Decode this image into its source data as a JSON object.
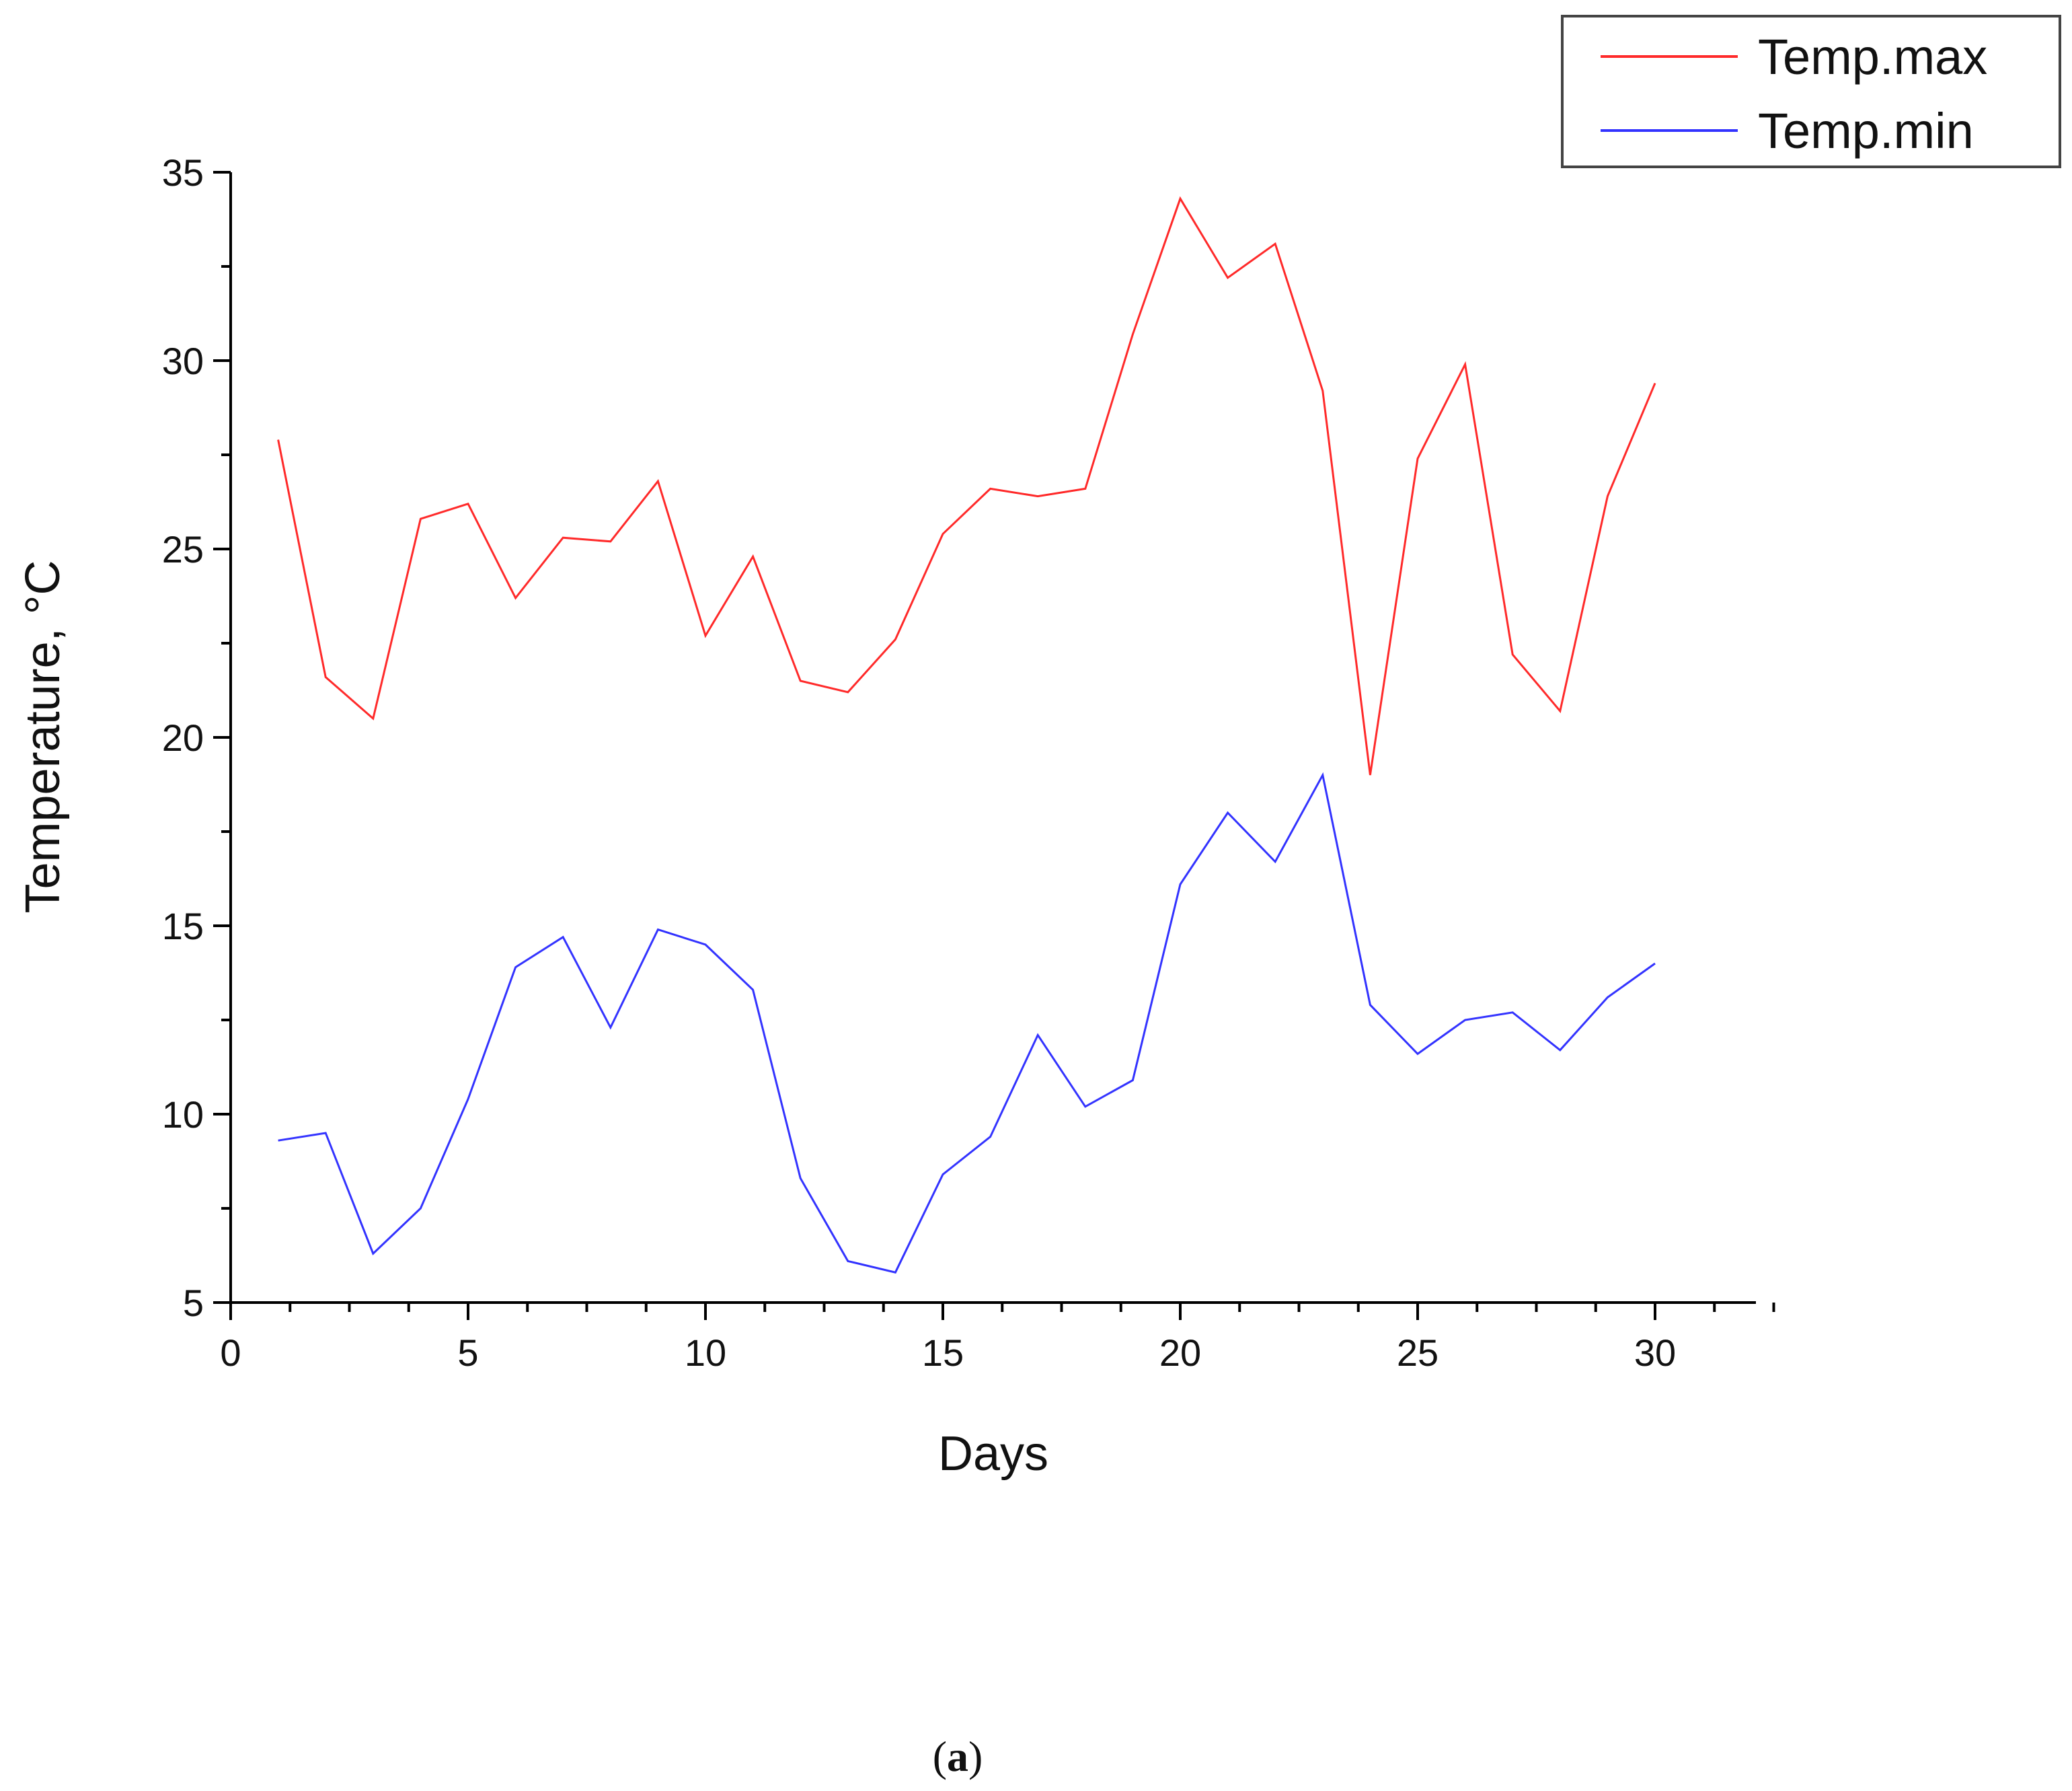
{
  "chart_data": {
    "type": "line",
    "title": "",
    "xlabel": "Days",
    "ylabel": "Temperature, °C",
    "xlim": [
      0,
      32.5
    ],
    "ylim": [
      5,
      35
    ],
    "x_ticks": [
      0,
      5,
      10,
      15,
      20,
      25,
      30
    ],
    "y_ticks": [
      5,
      10,
      15,
      20,
      25,
      30,
      35
    ],
    "legend_position": "top-right",
    "grid": false,
    "x": [
      1,
      2,
      3,
      4,
      5,
      6,
      7,
      8,
      9,
      10,
      11,
      12,
      13,
      14,
      15,
      16,
      17,
      18,
      19,
      20,
      21,
      22,
      23,
      24,
      25,
      26,
      27,
      28,
      29,
      30
    ],
    "series": [
      {
        "name": "Temp.max",
        "color": "#ff2a2a",
        "values": [
          27.9,
          21.6,
          20.5,
          25.8,
          26.2,
          23.7,
          25.3,
          25.2,
          26.8,
          22.7,
          24.8,
          21.5,
          21.2,
          22.6,
          25.4,
          26.6,
          26.4,
          26.6,
          30.7,
          34.3,
          32.2,
          33.1,
          29.2,
          19.0,
          27.4,
          29.9,
          22.2,
          20.7,
          26.4,
          29.4
        ]
      },
      {
        "name": "Temp.min",
        "color": "#3333ff",
        "values": [
          9.3,
          9.5,
          6.3,
          7.5,
          10.4,
          13.9,
          14.7,
          12.3,
          14.9,
          14.5,
          13.3,
          8.3,
          6.1,
          5.8,
          8.4,
          9.4,
          12.1,
          10.2,
          10.9,
          16.1,
          18.0,
          16.7,
          19.0,
          12.9,
          11.6,
          12.5,
          12.7,
          11.7,
          13.1,
          14.0
        ]
      }
    ]
  },
  "caption": {
    "open": "(",
    "letter": "a",
    "close": ")"
  }
}
